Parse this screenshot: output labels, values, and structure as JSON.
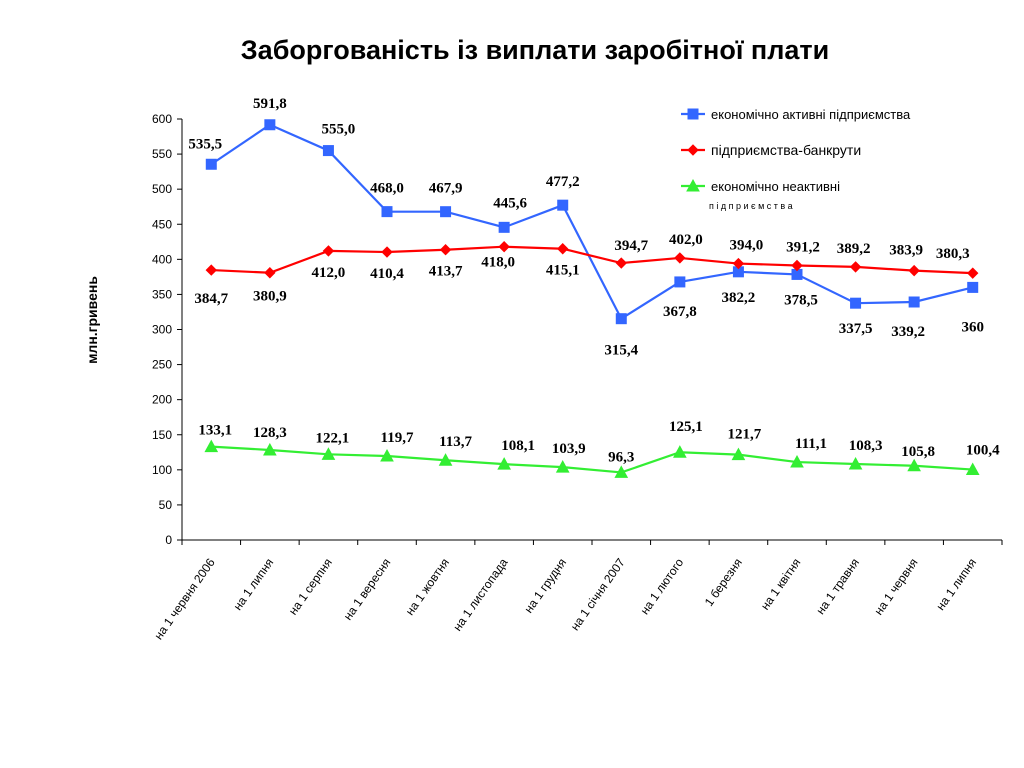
{
  "chart_data": {
    "type": "line",
    "title": "Заборгованість із виплати заробітної плати",
    "ylabel": "млн.гривень",
    "xlabel": "",
    "ylim": [
      0,
      600
    ],
    "yticks": [
      "0",
      "50",
      "100",
      "150",
      "200",
      "250",
      "300",
      "350",
      "400",
      "450",
      "500",
      "550",
      "600"
    ],
    "grid": false,
    "legend_position": "top-right",
    "categories": [
      "на 1 червня 2006",
      "на 1 липня",
      "на 1 серпня",
      "на 1 вересня",
      "на 1 жовтня",
      "на 1 листопада",
      "на 1 грудня",
      "на 1 січня 2007",
      "на 1 лютого",
      "1 березня",
      "на 1 квітня",
      "на 1 травня",
      "на 1 червня",
      "на 1 липня"
    ],
    "series": [
      {
        "name": "економічно активні підприємства",
        "color": "#3366ff",
        "marker": "square",
        "values": [
          535.5,
          591.8,
          555.0,
          468.0,
          467.9,
          445.6,
          477.2,
          315.4,
          367.8,
          382.2,
          378.5,
          337.5,
          339.2,
          360
        ],
        "labels": [
          "535,5",
          "591,8",
          "555,0",
          "468,0",
          "467,9",
          "445,6",
          "477,2",
          "315,4",
          "367,8",
          "382,2",
          "378,5",
          "337,5",
          "339,2",
          "360"
        ]
      },
      {
        "name": "підприємства-банкрути",
        "color": "#ff0000",
        "marker": "diamond",
        "values": [
          384.7,
          380.9,
          412.0,
          410.4,
          413.7,
          418.0,
          415.1,
          394.7,
          402.0,
          394.0,
          391.2,
          389.2,
          383.9,
          380.3
        ],
        "labels": [
          "384,7",
          "380,9",
          "412,0",
          "410,4",
          "413,7",
          "418,0",
          "415,1",
          "394,7",
          "402,0",
          "394,0",
          "391,2",
          "389,2",
          "383,9",
          "380,3"
        ]
      },
      {
        "name": "економічно неактивні",
        "name_line2": "підприємства",
        "color": "#33ee33",
        "marker": "triangle",
        "values": [
          133.1,
          128.3,
          122.1,
          119.7,
          113.7,
          108.1,
          103.9,
          96.3,
          125.1,
          121.7,
          111.1,
          108.3,
          105.8,
          100.4
        ],
        "labels": [
          "133,1",
          "128,3",
          "122,1",
          "119,7",
          "113,7",
          "108,1",
          "103,9",
          "96,3",
          "125,1",
          "121,7",
          "111,1",
          "108,3",
          "105,8",
          "100,4"
        ]
      }
    ]
  }
}
